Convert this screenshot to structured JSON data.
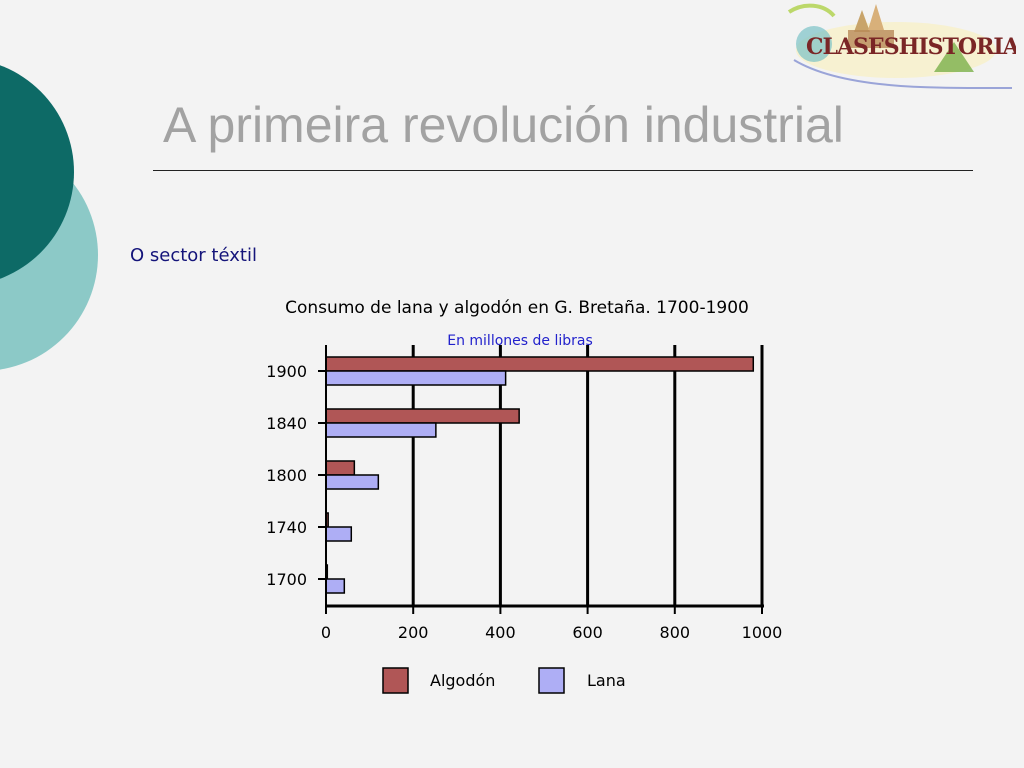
{
  "logo_text": "CLASESHISTORIA",
  "slide": {
    "title": "A primeira revolución industrial",
    "subtitle": "O sector téxtil"
  },
  "colors": {
    "teal_dark": "#0d6a66",
    "teal_light": "#8cc9c7",
    "algodon": "#b05656",
    "lana": "#aeaef5"
  },
  "chart_data": {
    "type": "bar",
    "orientation": "horizontal",
    "title": "Consumo de lana y algodón en G. Bretaña. 1700-1900",
    "subtitle": "En millones de libras",
    "categories": [
      "1900",
      "1840",
      "1800",
      "1740",
      "1700"
    ],
    "series": [
      {
        "name": "Algodón",
        "values": [
          980,
          443,
          65,
          5,
          3
        ]
      },
      {
        "name": "Lana",
        "values": [
          412,
          252,
          120,
          58,
          42
        ]
      }
    ],
    "xlim": [
      0,
      1000
    ],
    "xticks": [
      "0",
      "200",
      "400",
      "600",
      "800",
      "1000"
    ],
    "grid": true,
    "legend": "bottom"
  }
}
